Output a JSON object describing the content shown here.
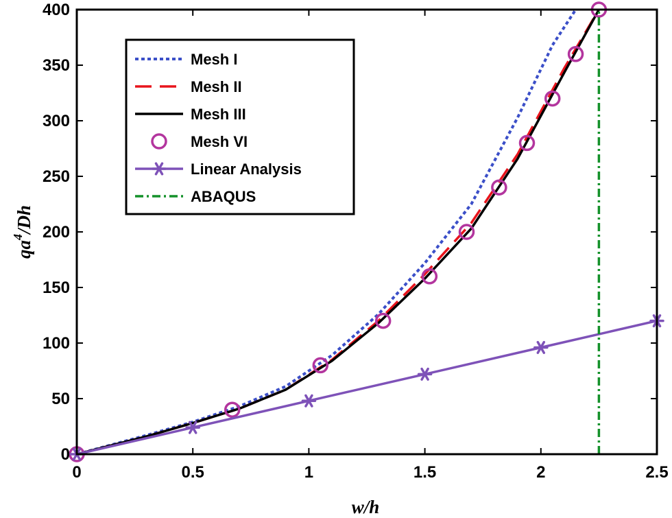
{
  "chart_data": {
    "type": "line",
    "title": "",
    "xlabel": "w/h",
    "ylabel_base": "qa",
    "ylabel_sup": "4",
    "ylabel_rest": "/Dh",
    "xlim": [
      0,
      2.5
    ],
    "ylim": [
      0,
      400
    ],
    "xticks": [
      0,
      0.5,
      1,
      1.5,
      2,
      2.5
    ],
    "xtick_labels": [
      "0",
      "0.5",
      "1",
      "1.5",
      "2",
      "2.5"
    ],
    "yticks": [
      0,
      50,
      100,
      150,
      200,
      250,
      300,
      350,
      400
    ],
    "ytick_labels": [
      "0",
      "50",
      "100",
      "150",
      "200",
      "250",
      "300",
      "350",
      "400"
    ],
    "grid": false,
    "legend_position": "top-left",
    "series": [
      {
        "name": "Mesh I",
        "style": "dotted",
        "color": "#3b4fc8",
        "marker": "none",
        "x": [
          0,
          0.3,
          0.5,
          0.7,
          0.9,
          1.1,
          1.3,
          1.5,
          1.7,
          1.9,
          2.05,
          2.15
        ],
        "y": [
          0,
          17,
          29,
          43,
          61,
          89,
          126,
          172,
          225,
          303,
          368,
          400
        ]
      },
      {
        "name": "Mesh II",
        "style": "dashed",
        "color": "#e8141c",
        "marker": "none",
        "x": [
          0,
          0.3,
          0.5,
          0.7,
          0.9,
          1.1,
          1.3,
          1.5,
          1.7,
          1.9,
          2.1,
          2.25
        ],
        "y": [
          0,
          16,
          28,
          41,
          58,
          85,
          120,
          162,
          208,
          270,
          347,
          400
        ]
      },
      {
        "name": "Mesh III",
        "style": "solid",
        "color": "#000000",
        "marker": "none",
        "x": [
          0,
          0.3,
          0.5,
          0.7,
          0.9,
          1.1,
          1.3,
          1.5,
          1.7,
          1.9,
          2.1,
          2.25
        ],
        "y": [
          0,
          16,
          28,
          41,
          58,
          84,
          118,
          158,
          203,
          266,
          343,
          400
        ]
      },
      {
        "name": "Mesh VI",
        "style": "none",
        "color": "#b3359e",
        "marker": "circle",
        "x": [
          0,
          0.67,
          1.05,
          1.32,
          1.52,
          1.68,
          1.82,
          1.94,
          2.05,
          2.15,
          2.25
        ],
        "y": [
          0,
          40,
          80,
          120,
          160,
          200,
          240,
          280,
          320,
          360,
          400
        ]
      },
      {
        "name": "Linear Analysis",
        "style": "solid",
        "color": "#7e52b8",
        "marker": "asterisk",
        "x": [
          0,
          0.5,
          1,
          1.5,
          2,
          2.5
        ],
        "y": [
          0,
          24,
          48,
          72,
          96,
          120
        ]
      },
      {
        "name": "ABAQUS",
        "style": "dashdot",
        "color": "#14912a",
        "marker": "none",
        "x": [
          2.25,
          2.25
        ],
        "y": [
          0,
          400
        ]
      }
    ]
  }
}
